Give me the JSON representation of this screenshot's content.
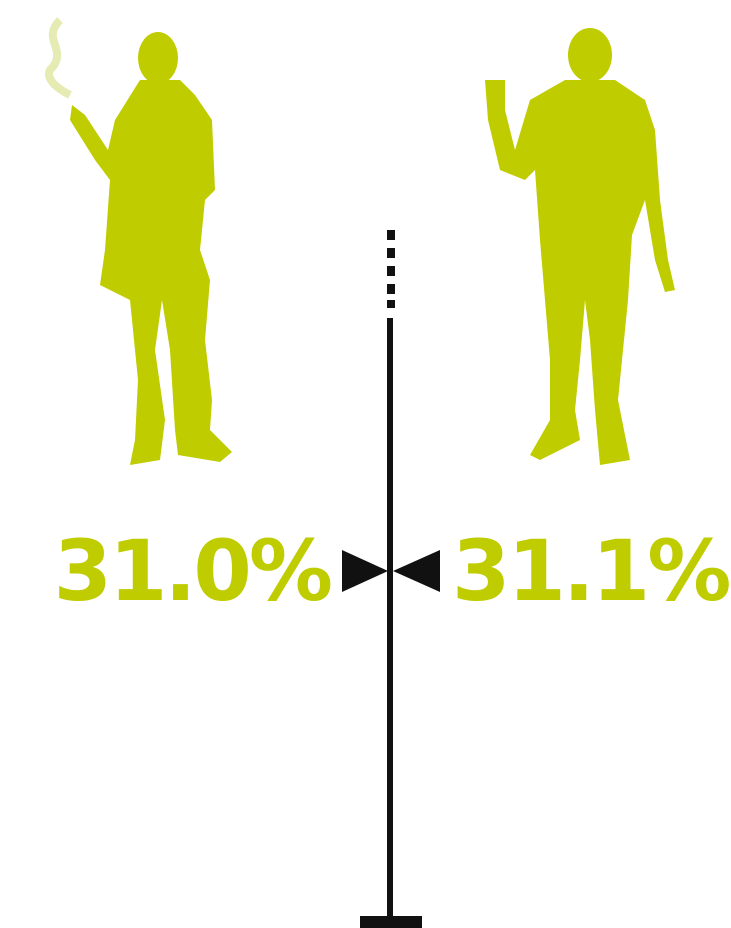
{
  "stats": [
    {
      "label": "31.0%"
    },
    {
      "label": "31.1%"
    }
  ]
}
